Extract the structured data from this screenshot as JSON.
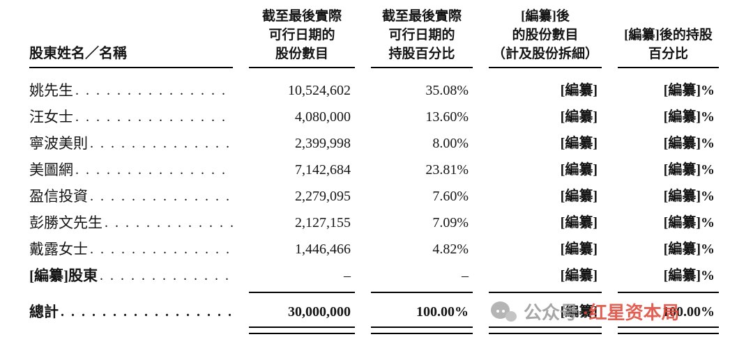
{
  "table": {
    "headers": {
      "col1": "股東姓名／名稱",
      "col2": [
        "截至最後實際",
        "可行日期的",
        "股份數目"
      ],
      "col3": [
        "截至最後實際",
        "可行日期的",
        "持股百分比"
      ],
      "col4": [
        "[編纂]後",
        "的股份數目",
        "（計及股份拆細）"
      ],
      "col5": [
        "[編纂]後的持股",
        "百分比"
      ]
    },
    "leader_dots": ". . . . . . . . . . . . . . . . . . . . . . . . . . . . . . . . . . . . . . . .",
    "rows": [
      {
        "name": "姚先生",
        "shares": "10,524,602",
        "pct": "35.08%",
        "shares_after": "[編纂]",
        "pct_after": "[編纂]%"
      },
      {
        "name": "汪女士",
        "shares": "4,080,000",
        "pct": "13.60%",
        "shares_after": "[編纂]",
        "pct_after": "[編纂]%"
      },
      {
        "name": "寧波美則",
        "shares": "2,399,998",
        "pct": "8.00%",
        "shares_after": "[編纂]",
        "pct_after": "[編纂]%"
      },
      {
        "name": "美圖網",
        "shares": "7,142,684",
        "pct": "23.81%",
        "shares_after": "[編纂]",
        "pct_after": "[編纂]%"
      },
      {
        "name": "盈信投資",
        "shares": "2,279,095",
        "pct": "7.60%",
        "shares_after": "[編纂]",
        "pct_after": "[編纂]%"
      },
      {
        "name": "彭勝文先生",
        "shares": "2,127,155",
        "pct": "7.09%",
        "shares_after": "[編纂]",
        "pct_after": "[編纂]%"
      },
      {
        "name": "戴露女士",
        "shares": "1,446,466",
        "pct": "4.82%",
        "shares_after": "[編纂]",
        "pct_after": "[編纂]%"
      },
      {
        "name": "[編纂]股東",
        "shares": "–",
        "pct": "–",
        "shares_after": "[編纂]",
        "pct_after": "[編纂]%"
      }
    ],
    "total": {
      "name": "總計",
      "shares": "30,000,000",
      "pct": "100.00%",
      "shares_after": "[編纂]",
      "pct_after": "100.00%"
    }
  },
  "watermark": {
    "prefix": "公众号",
    "name": "·红星资本局",
    "gray_color": "#9c9c9c",
    "red_color": "#e14a3c"
  }
}
